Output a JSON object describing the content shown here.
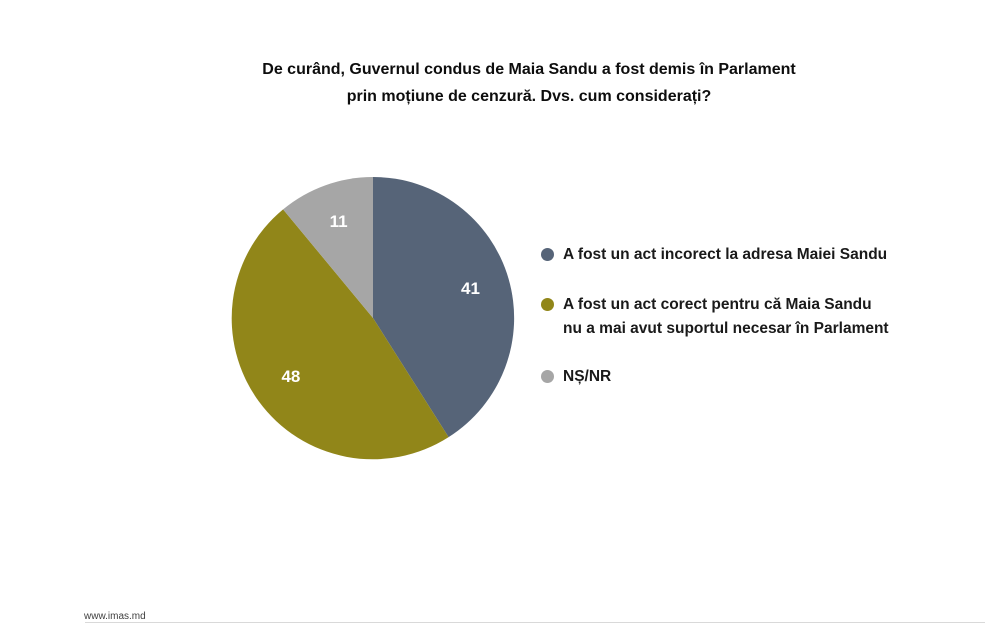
{
  "title": {
    "line1": "De curând, Guvernul condus de Maia Sandu a fost demis în Parlament",
    "line2": "prin moțiune de cenzură. Dvs. cum considerați?"
  },
  "legend": {
    "items": [
      {
        "lines": [
          "A fost un act incorect la adresa Maiei Sandu"
        ]
      },
      {
        "lines": [
          "A fost un act corect pentru că Maia Sandu",
          "nu a mai avut suportul necesar în Parlament"
        ]
      },
      {
        "lines": [
          "NȘ/NR"
        ]
      }
    ]
  },
  "footer": {
    "source": "www.imas.md"
  },
  "chart_data": {
    "type": "pie",
    "title": "De curând, Guvernul condus de Maia Sandu a fost demis în Parlament prin moțiune de cenzură. Dvs. cum considerați?",
    "start_angle_deg": 0,
    "direction": "clockwise",
    "data_labels": "values_inside_white",
    "legend_position": "right",
    "slices": [
      {
        "label": "A fost un act incorect la adresa Maiei Sandu",
        "value": 41,
        "color": "#566478"
      },
      {
        "label": "A fost un act corect pentru că Maia Sandu nu a mai avut suportul necesar în Parlament",
        "value": 48,
        "color": "#918619"
      },
      {
        "label": "NȘ/NR",
        "value": 11,
        "color": "#A6A6A6"
      }
    ]
  }
}
